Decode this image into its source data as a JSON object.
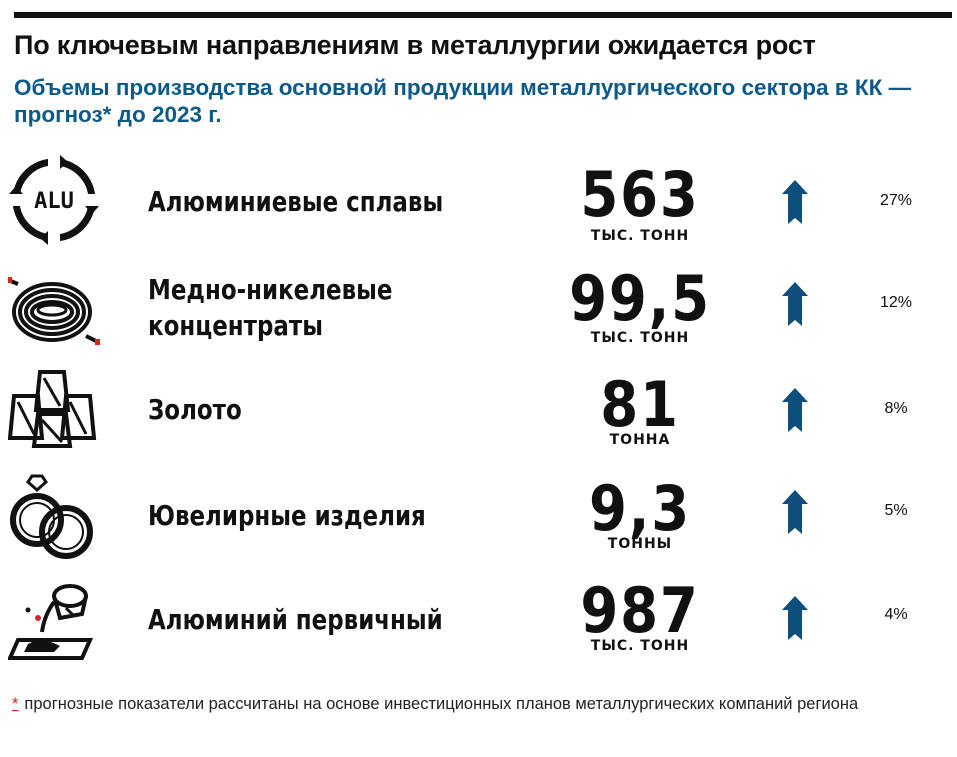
{
  "header": {
    "title": "По ключевым направлениям в металлургии ожидается рост",
    "subtitle": "Объемы производства основной продукции металлургического сектора в КК — прогноз* до 2023 г."
  },
  "chart_data": {
    "type": "table",
    "rows": [
      {
        "label": "Алюминиевые сплавы",
        "value": "563",
        "unit": "ТЫС. ТОНН",
        "growth": "27%",
        "trend": "up",
        "icon": "aluminum-recycling-icon"
      },
      {
        "label": "Медно-никелевые концентраты",
        "value": "99,5",
        "unit": "ТЫС. ТОНН",
        "growth": "12%",
        "trend": "up",
        "icon": "cable-coil-icon"
      },
      {
        "label": "Золото",
        "value": "81",
        "unit": "ТОННА",
        "growth": "8%",
        "trend": "up",
        "icon": "gold-bars-icon"
      },
      {
        "label": "Ювелирные изделия",
        "value": "9,3",
        "unit": "ТОННЫ",
        "growth": "5%",
        "trend": "up",
        "icon": "rings-icon"
      },
      {
        "label": "Алюминий первичный",
        "value": "987",
        "unit": "ТЫС. ТОНН",
        "growth": "4%",
        "trend": "up",
        "icon": "ladle-pouring-icon"
      }
    ]
  },
  "footnote": {
    "marker": "*",
    "text": "прогнозные показатели рассчитаны на основе инвестиционных планов металлургических компаний региона"
  },
  "colors": {
    "accent_blue": "#0b5a8a",
    "arrow_blue": "#0e4e7a",
    "text": "#111111",
    "footnote_marker": "#d7261e"
  }
}
